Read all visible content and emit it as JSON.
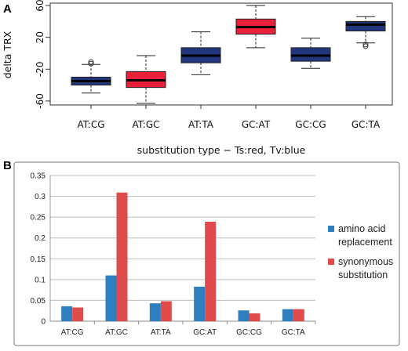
{
  "panels": {
    "a_label": "A",
    "b_label": "B"
  },
  "chart_data": [
    {
      "type": "box",
      "ylabel": "delta TRX",
      "xlabel": "substitution type − Ts:red, Tv:blue",
      "ylim": [
        -65,
        63
      ],
      "yticks": [
        -60,
        -20,
        20,
        60
      ],
      "categories": [
        "AT:CG",
        "AT:GC",
        "AT:TA",
        "GC:AT",
        "GC:CG",
        "GC:TA"
      ],
      "colors": {
        "transition": "#e8203a",
        "transversion": "#22367e"
      },
      "boxes": [
        {
          "category": "AT:CG",
          "type": "transversion",
          "whisker_low": -50,
          "q1": -40,
          "median": -35,
          "q3": -30,
          "whisker_high": -14,
          "outliers": [
            -11,
            -13
          ]
        },
        {
          "category": "AT:GC",
          "type": "transition",
          "whisker_low": -63,
          "q1": -43,
          "median": -34,
          "q3": -23,
          "whisker_high": -3,
          "outliers": []
        },
        {
          "category": "AT:TA",
          "type": "transversion",
          "whisker_low": -27,
          "q1": -12,
          "median": -3,
          "q3": 7,
          "whisker_high": 27,
          "outliers": []
        },
        {
          "category": "GC:AT",
          "type": "transition",
          "whisker_low": 7,
          "q1": 24,
          "median": 33,
          "q3": 43,
          "whisker_high": 60,
          "outliers": []
        },
        {
          "category": "GC:CG",
          "type": "transversion",
          "whisker_low": -19,
          "q1": -10,
          "median": -3,
          "q3": 7,
          "whisker_high": 19,
          "outliers": []
        },
        {
          "category": "GC:TA",
          "type": "transversion",
          "whisker_low": 13,
          "q1": 28,
          "median": 36,
          "q3": 40,
          "whisker_high": 46,
          "outliers": [
            9,
            11
          ]
        }
      ]
    },
    {
      "type": "bar",
      "categories": [
        "AT:CG",
        "AT:GC",
        "AT:TA",
        "GC:AT",
        "GC:CG",
        "GC:TA"
      ],
      "ylim": [
        0,
        0.35
      ],
      "yticks": [
        "0",
        "0.05",
        "0.1",
        "0.15",
        "0.2",
        "0.25",
        "0.3",
        "0.35"
      ],
      "grid": true,
      "legend_position": "right",
      "series": [
        {
          "name": "amino acid replacement",
          "legend_lines": [
            "amino acid",
            "replacement"
          ],
          "color": "#2e7fc0",
          "values": [
            0.036,
            0.11,
            0.043,
            0.083,
            0.026,
            0.029
          ]
        },
        {
          "name": "synonymous substitution",
          "legend_lines": [
            "synonymous",
            "substitution"
          ],
          "color": "#e14b4b",
          "values": [
            0.033,
            0.309,
            0.048,
            0.239,
            0.019,
            0.029
          ]
        }
      ]
    }
  ]
}
